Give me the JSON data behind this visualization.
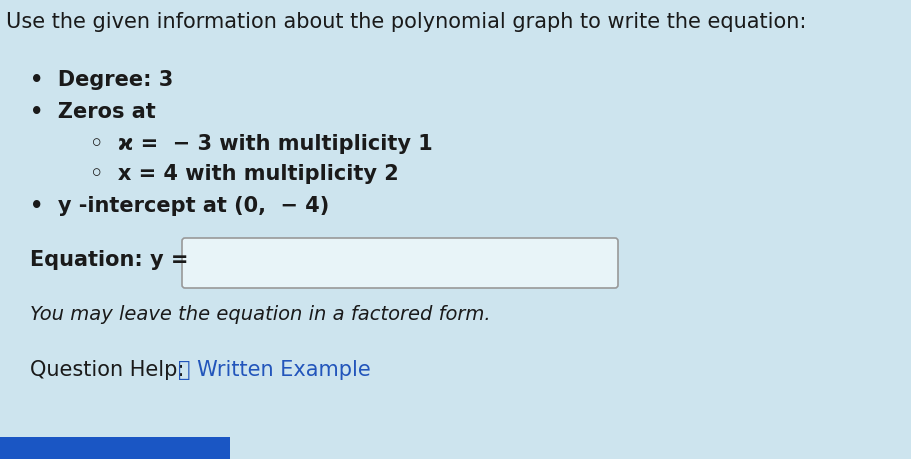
{
  "title": "Use the given information about the polynomial graph to write the equation:",
  "background_color": "#cde4ee",
  "bullet1": "Degree: 3",
  "bullet2": "Zeros at",
  "sub1_a": "ϰ =  − 3 with multiplicity 1",
  "sub2": "x = 4 with multiplicity 2",
  "bullet3": "y -intercept at (0,  − 4)",
  "equation_label": "Equation: y = ",
  "factored_note": "You may leave the equation in a factored form.",
  "question_help_prefix": "Question Help:  ",
  "question_help_link": "📄 Written Example",
  "text_color": "#1a1a1a",
  "link_color": "#2255bb",
  "box_edge_color": "#999999",
  "box_fill_color": "#e8f4f8",
  "title_fontsize": 15,
  "font_size_body": 15,
  "font_size_italic": 14
}
